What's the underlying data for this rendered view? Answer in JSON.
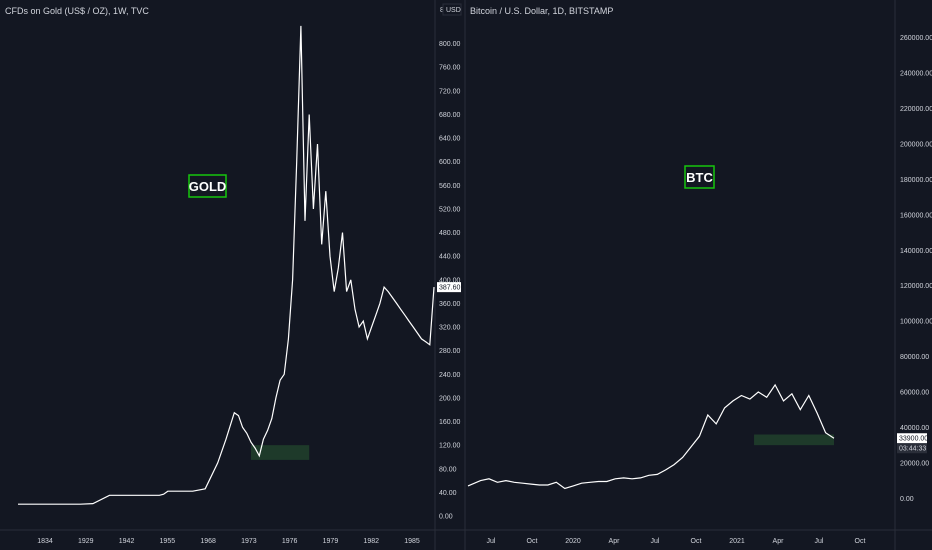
{
  "colors": {
    "background": "#131722",
    "text": "#d1d4dc",
    "line": "#ffffff",
    "badge_border": "#16c60c",
    "zone": "#1e3a2a",
    "axis_border": "#2a2e39"
  },
  "chart_data": [
    {
      "type": "line",
      "title": "CFDs on Gold (US$ / OZ), 1W, TVC",
      "badge": "GOLD",
      "axis_corner": "8",
      "axis_currency": "USD",
      "last_value_label": "387.60",
      "ylim": [
        0,
        840
      ],
      "y_ticks": [
        "0.00",
        "40.00",
        "80.00",
        "120.00",
        "160.00",
        "200.00",
        "240.00",
        "280.00",
        "320.00",
        "360.00",
        "400.00",
        "440.00",
        "480.00",
        "520.00",
        "560.00",
        "600.00",
        "640.00",
        "680.00",
        "720.00",
        "760.00",
        "800.00"
      ],
      "x_ticks": [
        "1834",
        "1929",
        "1942",
        "1955",
        "1968",
        "1973",
        "1976",
        "1979",
        "1982",
        "1985"
      ],
      "series": [
        {
          "x_index": [
            0,
            8,
            15,
            18,
            22,
            25,
            28,
            30,
            34,
            35,
            36,
            37,
            40,
            42,
            45,
            48,
            50,
            52,
            53,
            54,
            55,
            56,
            57,
            58,
            59,
            60,
            61,
            62,
            63,
            64,
            65,
            66,
            67,
            68,
            69,
            70,
            71,
            72,
            73,
            74,
            75,
            76,
            77,
            78,
            79,
            80,
            81,
            82,
            83,
            84,
            85,
            86,
            87,
            88,
            89,
            90,
            91,
            92,
            93,
            94,
            95,
            96,
            97,
            98,
            99,
            100
          ],
          "values": [
            20,
            20,
            20,
            21,
            35,
            35,
            35,
            35,
            35,
            37,
            42,
            42,
            42,
            42,
            46,
            90,
            130,
            175,
            170,
            150,
            140,
            125,
            115,
            102,
            130,
            145,
            165,
            200,
            230,
            240,
            300,
            400,
            600,
            830,
            500,
            680,
            520,
            630,
            460,
            550,
            440,
            380,
            420,
            480,
            380,
            400,
            350,
            320,
            330,
            300,
            320,
            340,
            360,
            387.6,
            380,
            370,
            360,
            350,
            340,
            330,
            320,
            310,
            300,
            295,
            290,
            387.6
          ],
          "_note_removed": ""
        }
      ],
      "zone": {
        "x_from_index": 56,
        "x_to_index": 70,
        "y_from": 95,
        "y_to": 120
      }
    },
    {
      "type": "line",
      "title": "Bitcoin / U.S. Dollar, 1D, BITSTAMP",
      "badge": "BTC",
      "last_value_label": "33900.00",
      "last_time_label": "03:44:33",
      "ylim": [
        -10000,
        270000
      ],
      "y_ticks": [
        "0.00",
        "20000.00",
        "40000.00",
        "60000.00",
        "80000.00",
        "100000.00",
        "120000.00",
        "140000.00",
        "160000.00",
        "180000.00",
        "200000.00",
        "220000.00",
        "240000.00",
        "260000.00"
      ],
      "x_ticks": [
        "Jul",
        "Oct",
        "2020",
        "Apr",
        "Jul",
        "Oct",
        "2021",
        "Apr",
        "Jul",
        "Oct"
      ],
      "series": [
        {
          "x_index": [
            0,
            3,
            5,
            7,
            9,
            11,
            13,
            15,
            17,
            19,
            21,
            23,
            25,
            27,
            29,
            31,
            33,
            35,
            37,
            39,
            41,
            43,
            45,
            47,
            49,
            51,
            53,
            55,
            57,
            59,
            61,
            63,
            65,
            67,
            69,
            71,
            73,
            75,
            77,
            79,
            81,
            83,
            85,
            87
          ],
          "values": [
            7000,
            10000,
            11000,
            9000,
            10000,
            9000,
            8500,
            8000,
            7500,
            7500,
            9000,
            5500,
            7000,
            8500,
            9000,
            9500,
            9500,
            11000,
            11500,
            11000,
            11500,
            13000,
            13500,
            16000,
            19000,
            23000,
            29000,
            35000,
            47000,
            42000,
            51000,
            55000,
            58000,
            56000,
            60000,
            57000,
            64000,
            55000,
            59000,
            50000,
            58000,
            48000,
            37000,
            33900
          ]
        }
      ],
      "zone": {
        "x_from_index": 68,
        "x_to_index": 87,
        "y_from": 30000,
        "y_to": 36000
      }
    }
  ]
}
